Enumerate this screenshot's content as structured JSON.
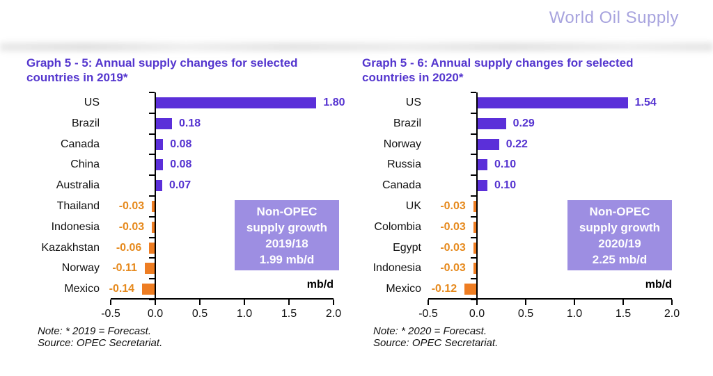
{
  "header": {
    "brand": "World Oil Supply"
  },
  "colors": {
    "brand": "#a7a3de",
    "heading": "#5436ce",
    "bar_positive": "#5b2fd9",
    "bar_negative": "#ee7d22",
    "text_positive": "#5533d0",
    "text_negative": "#e68a1e",
    "annotation_fill": "#9d8ee2",
    "annotation_text": "#ffffff",
    "axis": "#000000"
  },
  "chart_data": [
    {
      "type": "bar",
      "orientation": "horizontal",
      "title": "Graph 5 - 5: Annual supply changes for selected countries in 2019*",
      "title_lines": [
        "Graph 5 - 5: Annual supply changes for selected",
        "countries in 2019*"
      ],
      "categories": [
        "US",
        "Brazil",
        "Canada",
        "China",
        "Australia",
        "Thailand",
        "Indonesia",
        "Kazakhstan",
        "Norway",
        "Mexico"
      ],
      "values": [
        1.8,
        0.18,
        0.08,
        0.08,
        0.07,
        -0.03,
        -0.03,
        -0.06,
        -0.11,
        -0.14
      ],
      "value_labels": [
        "1.80",
        "0.18",
        "0.08",
        "0.08",
        "0.07",
        "-0.03",
        "-0.03",
        "-0.06",
        "-0.11",
        "-0.14"
      ],
      "xlim": [
        -0.5,
        2.0
      ],
      "xticks": [
        "-0.5",
        "0.0",
        "0.5",
        "1.0",
        "1.5",
        "2.0"
      ],
      "xlabel": "mb/d",
      "grid": false,
      "legend": "none",
      "annotation": {
        "lines": [
          "Non-OPEC",
          "supply growth",
          "2019/18",
          "1.99 mb/d"
        ]
      },
      "notes": [
        "Note: * 2019 = Forecast.",
        "Source: OPEC Secretariat."
      ],
      "positive_color": "#5b2fd9",
      "negative_color": "#ee7d22",
      "text_positive_color": "#5533d0",
      "text_negative_color": "#e68a1e"
    },
    {
      "type": "bar",
      "orientation": "horizontal",
      "title": "Graph 5 - 6: Annual supply changes for selected countries in 2020*",
      "title_lines": [
        "Graph 5 - 6: Annual supply changes for selected",
        "countries in 2020*"
      ],
      "categories": [
        "US",
        "Brazil",
        "Norway",
        "Russia",
        "Canada",
        "UK",
        "Colombia",
        "Egypt",
        "Indonesia",
        "Mexico"
      ],
      "values": [
        1.54,
        0.29,
        0.22,
        0.1,
        0.1,
        -0.03,
        -0.03,
        -0.03,
        -0.03,
        -0.12
      ],
      "value_labels": [
        "1.54",
        "0.29",
        "0.22",
        "0.10",
        "0.10",
        "-0.03",
        "-0.03",
        "-0.03",
        "-0.03",
        "-0.12"
      ],
      "xlim": [
        -0.5,
        2.0
      ],
      "xticks": [
        "-0.5",
        "0.0",
        "0.5",
        "1.0",
        "1.5",
        "2.0"
      ],
      "xlabel": "mb/d",
      "grid": false,
      "legend": "none",
      "annotation": {
        "lines": [
          "Non-OPEC",
          "supply growth",
          "2020/19",
          "2.25 mb/d"
        ]
      },
      "notes": [
        "Note: * 2020 = Forecast.",
        "Source: OPEC Secretariat."
      ],
      "positive_color": "#5b2fd9",
      "negative_color": "#ee7d22",
      "text_positive_color": "#5533d0",
      "text_negative_color": "#e68a1e"
    }
  ]
}
